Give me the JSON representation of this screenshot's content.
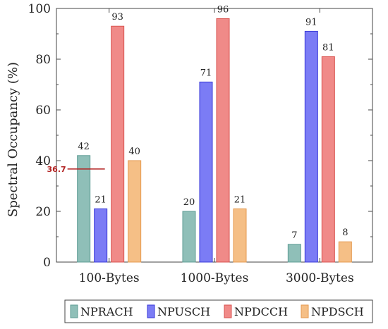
{
  "chart_data": {
    "type": "bar",
    "categories": [
      "100-Bytes",
      "1000-Bytes",
      "3000-Bytes"
    ],
    "series": [
      {
        "name": "NPRACH",
        "values": [
          42,
          20,
          7
        ],
        "color": "#8fbfb8",
        "edge": "#5f9c94"
      },
      {
        "name": "NPUSCH",
        "values": [
          21,
          71,
          91
        ],
        "color": "#7b7cf5",
        "edge": "#3a3ad8"
      },
      {
        "name": "NPDCCH",
        "values": [
          93,
          96,
          81
        ],
        "color": "#f08a88",
        "edge": "#d9534f"
      },
      {
        "name": "NPDSCH",
        "values": [
          40,
          21,
          8
        ],
        "color": "#f5bf86",
        "edge": "#e59a4f"
      }
    ],
    "ylabel": "Spectral Occupancy (%)",
    "xlabel": "",
    "ylim": [
      0,
      100
    ],
    "yticks": [
      0,
      20,
      40,
      60,
      80,
      100
    ],
    "legend_position": "bottom",
    "annotation": {
      "label": "36.7",
      "value": 36.7,
      "color": "#b22222"
    }
  }
}
